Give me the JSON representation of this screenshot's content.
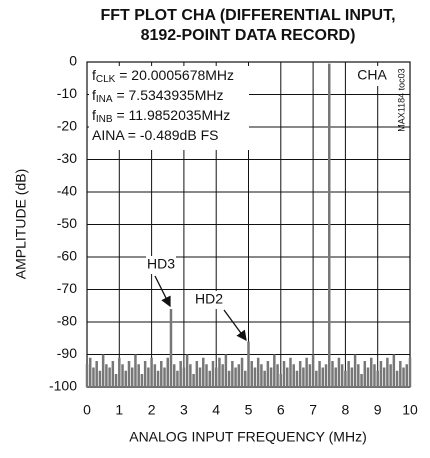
{
  "chart_data": {
    "type": "stem",
    "title": [
      "FFT PLOT CHA (DIFFERENTIAL INPUT,",
      "8192-POINT DATA RECORD)"
    ],
    "xlabel": "ANALOG INPUT FREQUENCY (MHz)",
    "ylabel": "AMPLITUDE (dB)",
    "annotations": {
      "params": [
        {
          "text": "f",
          "sub": "CLK",
          "rest": " = 20.0005678MHz"
        },
        {
          "text": "f",
          "sub": "INA",
          "rest": " = 7.5343935MHz"
        },
        {
          "text": "f",
          "sub": "INB",
          "rest": " = 11.9852035MHz"
        },
        {
          "text": "AINA = -0.489dB FS"
        }
      ],
      "channel": "CHA",
      "figure_id": "MAX1184 toc03",
      "hd3": "HD3",
      "hd2": "HD2"
    },
    "x": [
      0,
      0.1,
      0.2,
      0.3,
      0.4,
      0.5,
      0.6,
      0.7,
      0.8,
      0.9,
      1,
      1.1,
      1.2,
      1.3,
      1.4,
      1.5,
      1.6,
      1.7,
      1.8,
      1.9,
      2,
      2.1,
      2.2,
      2.3,
      2.4,
      2.5,
      2.6,
      2.7,
      2.8,
      2.9,
      3,
      3.1,
      3.2,
      3.3,
      3.4,
      3.5,
      3.6,
      3.7,
      3.8,
      3.9,
      4,
      4.1,
      4.2,
      4.3,
      4.4,
      4.5,
      4.6,
      4.7,
      4.8,
      4.9,
      5,
      5.1,
      5.2,
      5.3,
      5.4,
      5.5,
      5.6,
      5.7,
      5.8,
      5.9,
      6,
      6.1,
      6.2,
      6.3,
      6.4,
      6.5,
      6.6,
      6.7,
      6.8,
      6.9,
      7,
      7.1,
      7.2,
      7.3,
      7.4,
      7.5,
      7.6,
      7.7,
      7.8,
      7.9,
      8,
      8.1,
      8.2,
      8.3,
      8.4,
      8.5,
      8.6,
      8.7,
      8.8,
      8.9,
      9,
      9.1,
      9.2,
      9.3,
      9.4,
      9.5,
      9.6,
      9.7,
      9.8,
      9.9,
      10
    ],
    "values": [
      -93,
      -91,
      -94,
      -92,
      -95,
      -90,
      -93,
      -94,
      -92,
      -96,
      -91,
      -93,
      -95,
      -92,
      -94,
      -90,
      -93,
      -96,
      -92,
      -94,
      -91,
      -93,
      -95,
      -92,
      -94,
      -91,
      -76,
      -93,
      -95,
      -92,
      -94,
      -90,
      -93,
      -96,
      -92,
      -94,
      -91,
      -93,
      -95,
      -92,
      -94,
      -91,
      -93,
      -90,
      -95,
      -92,
      -94,
      -93,
      -91,
      -95,
      -86,
      -92,
      -94,
      -91,
      -93,
      -95,
      -92,
      -94,
      -90,
      -93,
      -96,
      -92,
      -94,
      -91,
      -93,
      -95,
      -92,
      -94,
      -91,
      -93,
      -90,
      -95,
      -92,
      -94,
      -93,
      -0.489,
      -92,
      -94,
      -91,
      -93,
      -95,
      -92,
      -94,
      -90,
      -93,
      -96,
      -92,
      -94,
      -91,
      -93,
      -95,
      -92,
      -94,
      -91,
      -93,
      -90,
      -95,
      -92,
      -94,
      -93,
      -91
    ],
    "color": "#777777",
    "xlim": [
      0,
      10
    ],
    "xticks": [
      0,
      1,
      2,
      3,
      4,
      5,
      6,
      7,
      8,
      9,
      10
    ],
    "ylim": [
      -100,
      0
    ],
    "yticks": [
      0,
      -10,
      -20,
      -30,
      -40,
      -50,
      -60,
      -70,
      -80,
      -90,
      -100
    ],
    "grid": true
  }
}
